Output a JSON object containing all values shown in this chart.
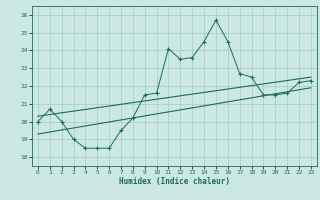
{
  "title": "",
  "xlabel": "Humidex (Indice chaleur)",
  "bg_color": "#cce8e4",
  "grid_color": "#aacfcb",
  "line_color": "#1a6b5a",
  "xlim": [
    -0.5,
    23.5
  ],
  "ylim": [
    17.5,
    26.5
  ],
  "xticks": [
    0,
    1,
    2,
    3,
    4,
    5,
    6,
    7,
    8,
    9,
    10,
    11,
    12,
    13,
    14,
    15,
    16,
    17,
    18,
    19,
    20,
    21,
    22,
    23
  ],
  "yticks": [
    18,
    19,
    20,
    21,
    22,
    23,
    24,
    25,
    26
  ],
  "scatter_x": [
    0,
    1,
    2,
    3,
    4,
    5,
    6,
    7,
    8,
    9,
    10,
    11,
    12,
    13,
    14,
    15,
    16,
    17,
    18,
    19,
    20,
    21,
    22,
    23
  ],
  "scatter_y": [
    20.0,
    20.7,
    20.0,
    19.0,
    18.5,
    18.5,
    18.5,
    19.5,
    20.2,
    21.5,
    21.6,
    24.1,
    23.5,
    23.6,
    24.5,
    25.7,
    24.5,
    22.7,
    22.5,
    21.5,
    21.5,
    21.6,
    22.2,
    22.3
  ],
  "trend_x": [
    0,
    23
  ],
  "trend_y": [
    19.3,
    21.9
  ],
  "trend2_x": [
    0,
    23
  ],
  "trend2_y": [
    20.3,
    22.5
  ]
}
